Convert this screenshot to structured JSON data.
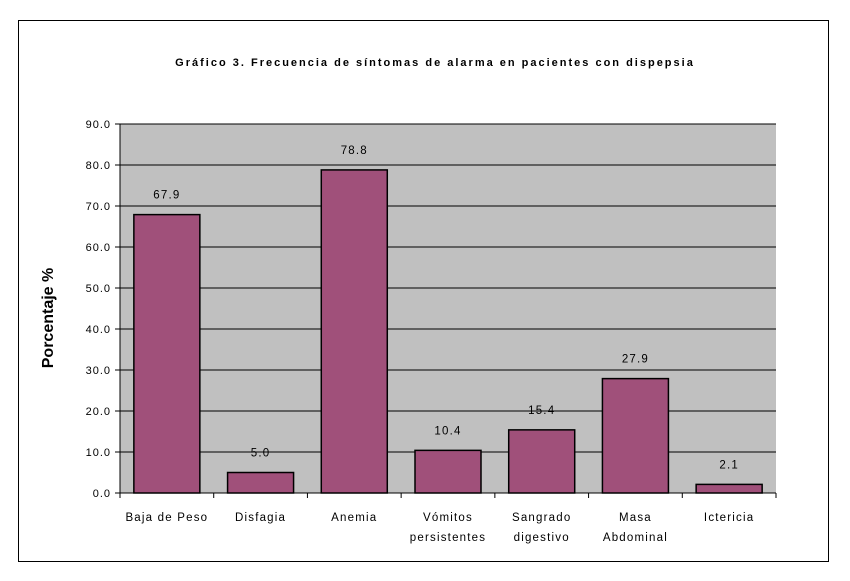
{
  "chart_data": {
    "type": "bar",
    "title": "Gráfico 3. Frecuencia de síntomas de alarma en pacientes con dispepsia",
    "xlabel": "",
    "ylabel": "Porcentaje %",
    "ylim": [
      0,
      90
    ],
    "yticks": [
      "0.0",
      "10.0",
      "20.0",
      "30.0",
      "40.0",
      "50.0",
      "60.0",
      "70.0",
      "80.0",
      "90.0"
    ],
    "categories": [
      [
        "Baja de Peso"
      ],
      [
        "Disfagia"
      ],
      [
        "Anemia"
      ],
      [
        "Vómitos",
        "persistentes"
      ],
      [
        "Sangrado",
        "digestivo"
      ],
      [
        "Masa",
        "Abdominal"
      ],
      [
        "Ictericia"
      ]
    ],
    "values": [
      67.9,
      5.0,
      78.8,
      10.4,
      15.4,
      27.9,
      2.1
    ],
    "data_labels": [
      "67.9",
      "5.0",
      "78.8",
      "10.4",
      "15.4",
      "27.9",
      "2.1"
    ],
    "grid": true,
    "legend": "none",
    "colors": {
      "bar": "#a0507a",
      "plot_background": "#c0c0c0",
      "gridline": "#000000"
    }
  }
}
